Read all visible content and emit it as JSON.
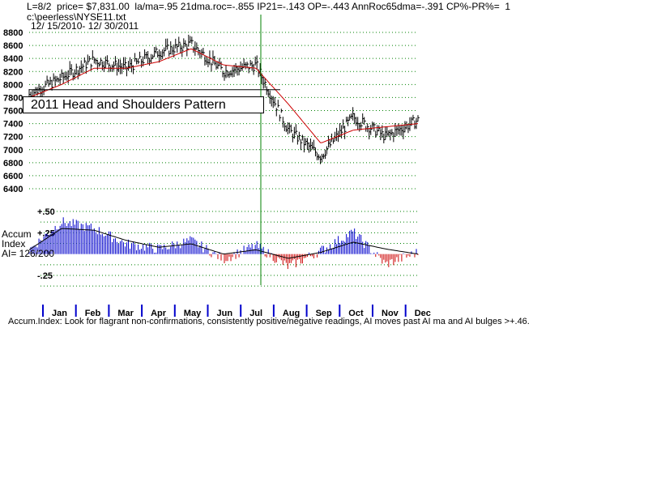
{
  "header": {
    "line1": "L=8/2  price= $7,831.00  la/ma=.95 21dma.roc=-.855 IP21=-.143 OP=-.443 AnnRoc65dma=-.391 CP%-PR%=  1",
    "line2": "c:\\peerless\\NYSE11.txt",
    "line3": "12/ 15/2010- 12/ 30/2011"
  },
  "annotation": "2011 Head and Shoulders Pattern",
  "side_labels": {
    "accum": "Accum",
    "index": "Index",
    "ai": "AI= 126/200"
  },
  "footer": "Accum.Index: Look for flagrant non-confirmations, consistently positive/negative readings, AI moves past AI ma and AI bulges >+.46.",
  "colors": {
    "grid": "#008000",
    "price_bars": "#000000",
    "ma_line": "#cc0000",
    "ai_positive": "#0000cc",
    "ai_negative": "#cc0000",
    "vertical_marker": "#008000",
    "month_ticks": "#0000cc"
  },
  "chart_data": [
    {
      "type": "line",
      "title": "",
      "subtitle": "",
      "ylim": [
        6400,
        8800
      ],
      "y_ticks": [
        "8800",
        "8600",
        "8400",
        "8200",
        "8000",
        "7800",
        "7600",
        "7400",
        "7200",
        "7000",
        "6800",
        "6600",
        "6400"
      ],
      "grid": true,
      "x": [
        "Dec 2010",
        "Jan",
        "Feb",
        "Mar",
        "Apr",
        "May",
        "Jun",
        "Jul",
        "Aug",
        "Sep",
        "Oct",
        "Nov",
        "Dec"
      ],
      "series": [
        {
          "name": "",
          "values": [
            7850,
            8100,
            8380,
            8250,
            8500,
            8620,
            8200,
            8300,
            7300,
            6900,
            7500,
            7200,
            7450
          ]
        },
        {
          "name": "",
          "values": [
            7800,
            8000,
            8250,
            8250,
            8350,
            8550,
            8300,
            8250,
            7700,
            7100,
            7300,
            7350,
            7400
          ]
        }
      ],
      "neckline_value": 7920
    },
    {
      "type": "bar",
      "title": "",
      "ylim": [
        -0.25,
        0.5
      ],
      "y_ticks": [
        "+.50",
        "+.25",
        "-.25"
      ],
      "grid": true,
      "x": [
        "Dec 2010",
        "Jan",
        "Feb",
        "Mar",
        "Apr",
        "May",
        "Jun",
        "Jul",
        "Aug",
        "Sep",
        "Oct",
        "Nov",
        "Dec"
      ],
      "series": [
        {
          "name": "",
          "values": [
            0.05,
            0.38,
            0.3,
            0.12,
            0.06,
            0.16,
            -0.06,
            0.1,
            -0.15,
            0.04,
            0.26,
            -0.12,
            0.02
          ]
        },
        {
          "name": "",
          "values": [
            0.05,
            0.3,
            0.28,
            0.16,
            0.08,
            0.12,
            0.0,
            0.05,
            -0.05,
            0.02,
            0.14,
            0.06,
            0.0
          ]
        }
      ],
      "months": [
        "Jan",
        "Feb",
        "Mar",
        "Apr",
        "May",
        "Jun",
        "Jul",
        "Aug",
        "Sep",
        "Oct",
        "Nov",
        "Dec"
      ]
    }
  ]
}
